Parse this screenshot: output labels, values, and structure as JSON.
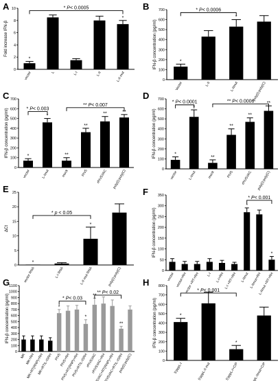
{
  "chart_data": [
    {
      "panel": "A",
      "type": "bar",
      "categories": [
        "vector",
        "L",
        "L-I",
        "L-II",
        "L-II mut"
      ],
      "values": [
        1.0,
        8.5,
        1.5,
        8.0,
        7.4
      ],
      "errors": [
        0.3,
        0.4,
        0.25,
        0.7,
        0.6
      ],
      "colors": [
        "#000000",
        "#000000",
        "#000000",
        "#000000",
        "#000000"
      ],
      "ylabel": "Fold increase IFN-β",
      "ylim": [
        0,
        10
      ],
      "yticks": [
        0,
        2,
        4,
        6,
        8,
        10
      ],
      "stars": [
        "*",
        "",
        "",
        "",
        "*"
      ],
      "annotation": "* P< 0.0005"
    },
    {
      "panel": "B",
      "type": "bar",
      "categories": [
        "Vector",
        "L-II",
        "L-IImut",
        "poly(I):poly(C)"
      ],
      "values": [
        130,
        430,
        530,
        580
      ],
      "errors": [
        25,
        60,
        70,
        60
      ],
      "colors": [
        "#000000",
        "#000000",
        "#000000",
        "#000000"
      ],
      "ylabel": "IFN-β concentration (pg/ml)",
      "ylim": [
        0,
        700
      ],
      "yticks": [
        0,
        100,
        200,
        300,
        400,
        500,
        600,
        700
      ],
      "stars": [
        "*",
        "",
        "*",
        ""
      ],
      "annotation": "* P< 0.0006"
    },
    {
      "panel": "C",
      "type": "bar",
      "categories": [
        "vector",
        "L-Imut",
        "mock",
        "PIV5",
        "rPIV5VAC",
        "poly(I):poly(C)"
      ],
      "values": [
        70,
        460,
        70,
        360,
        470,
        510
      ],
      "errors": [
        20,
        40,
        30,
        40,
        50,
        30
      ],
      "colors": [
        "#000000",
        "#000000",
        "#000000",
        "#000000",
        "#000000",
        "#000000"
      ],
      "ylabel": "IFN-β concentration (pg/ml)",
      "ylim": [
        0,
        700
      ],
      "yticks": [
        0,
        100,
        200,
        300,
        400,
        500,
        600,
        700
      ],
      "stars": [
        "*",
        "*",
        "**",
        "**",
        "**",
        "**"
      ],
      "annotations": [
        "* P< 0.003",
        "** P< 0.007"
      ]
    },
    {
      "panel": "D",
      "type": "bar",
      "categories": [
        "vector",
        "L-Imut",
        "mock",
        "PIV5",
        "rPIV5VAC",
        "poly(I):poly(C)"
      ],
      "values": [
        90,
        520,
        60,
        340,
        470,
        580
      ],
      "errors": [
        30,
        70,
        30,
        60,
        40,
        50
      ],
      "colors": [
        "#000000",
        "#000000",
        "#000000",
        "#000000",
        "#000000",
        "#000000"
      ],
      "ylabel": "IFN-β concentration (pg/ml)",
      "ylim": [
        0,
        700
      ],
      "yticks": [
        0,
        100,
        200,
        300,
        400,
        500,
        600,
        700
      ],
      "stars": [
        "*",
        "*",
        "**",
        "**",
        "**",
        "**"
      ],
      "annotations": [
        "* P< 0.0001",
        "** P< 0.0006"
      ]
    },
    {
      "panel": "E",
      "type": "bar",
      "categories": [
        "vector RNA",
        "L-I RNA",
        "L-II mut RNA",
        "poly(I):poly(C)"
      ],
      "values": [
        0,
        0.5,
        9.0,
        18.0
      ],
      "errors": [
        0,
        0.3,
        4.0,
        3.0
      ],
      "colors": [
        "#000000",
        "#000000",
        "#000000",
        "#000000"
      ],
      "ylabel": "ΔCt",
      "ylim": [
        0,
        25
      ],
      "yticks": [
        0,
        5,
        10,
        15,
        20,
        25
      ],
      "stars": [
        "*",
        "",
        "*",
        ""
      ],
      "annotation": "* p < 0.05"
    },
    {
      "panel": "F",
      "type": "bar",
      "categories": [
        "vector",
        "vector+RH",
        "vector +RT+RH",
        "L-I",
        "L-I+RH",
        "L-I +RT+RH",
        "L-IImut",
        "L-IImut+RH",
        "L-IImut +RT+RH"
      ],
      "values": [
        40,
        30,
        30,
        40,
        35,
        30,
        270,
        260,
        50
      ],
      "errors": [
        15,
        12,
        12,
        15,
        12,
        8,
        20,
        20,
        15
      ],
      "colors": [
        "#000000",
        "#000000",
        "#000000",
        "#000000",
        "#000000",
        "#000000",
        "#000000",
        "#000000",
        "#000000"
      ],
      "ylabel": "IFN-β concentration (pg/ml)",
      "ylim": [
        0,
        350
      ],
      "yticks": [
        0,
        50,
        100,
        150,
        200,
        250,
        300,
        350
      ],
      "stars": [
        "",
        "",
        "",
        "",
        "",
        "",
        "*",
        "",
        "*"
      ],
      "annotation": "* P< 0.001"
    },
    {
      "panel": "G",
      "type": "bar",
      "categories": [
        "MK",
        "MK+RH",
        "MK+RT(RNP)+RH",
        "MK+RTIL-ISRH",
        "PIV5",
        "PIV5+RH",
        "PIV5+RT(RNP)+RH",
        "PIV5+RTIL-ISRH",
        "rPIV5VAC",
        "rPIV5VAC+RH",
        "rPIV5VAC+RT(RNP)+RH",
        "rPIV5VAC+RTIL-ISRH",
        "poly(I):poly(C)"
      ],
      "values": [
        200,
        200,
        200,
        180,
        640,
        680,
        700,
        460,
        780,
        800,
        760,
        380,
        700
      ],
      "errors": [
        60,
        60,
        60,
        50,
        60,
        80,
        70,
        70,
        110,
        110,
        100,
        40,
        60
      ],
      "colors": [
        "#000000",
        "#000000",
        "#000000",
        "#000000",
        "#9a9a9a",
        "#9a9a9a",
        "#9a9a9a",
        "#9a9a9a",
        "#9a9a9a",
        "#9a9a9a",
        "#9a9a9a",
        "#9a9a9a",
        "#9a9a9a"
      ],
      "ylabel": "IFN-β concentration (pg/ml)",
      "ylim": [
        0,
        1100
      ],
      "yticks": [
        0,
        100,
        200,
        300,
        400,
        500,
        600,
        700,
        800,
        900,
        1000,
        1100
      ],
      "stars": [
        "",
        "",
        "",
        "",
        "*",
        "",
        "",
        "*",
        "**",
        "",
        "",
        "**",
        ""
      ],
      "annotations": [
        "* P< 0.03",
        "** P< 0.02"
      ]
    },
    {
      "panel": "H",
      "type": "bar",
      "categories": [
        "5'pppL-I",
        "5'pppL-II mut",
        "5'pppL-I+CIP",
        "5'pppL-IImut+CIP"
      ],
      "values": [
        410,
        610,
        120,
        480
      ],
      "errors": [
        40,
        120,
        40,
        90
      ],
      "colors": [
        "#000000",
        "#000000",
        "#000000",
        "#000000"
      ],
      "ylabel": "IFN-β concentration (pg/ml)",
      "ylim": [
        0,
        800
      ],
      "yticks": [
        0,
        100,
        200,
        300,
        400,
        500,
        600,
        700,
        800
      ],
      "stars": [
        "*",
        "",
        "*",
        ""
      ],
      "annotation": "* P< 0.001"
    }
  ]
}
